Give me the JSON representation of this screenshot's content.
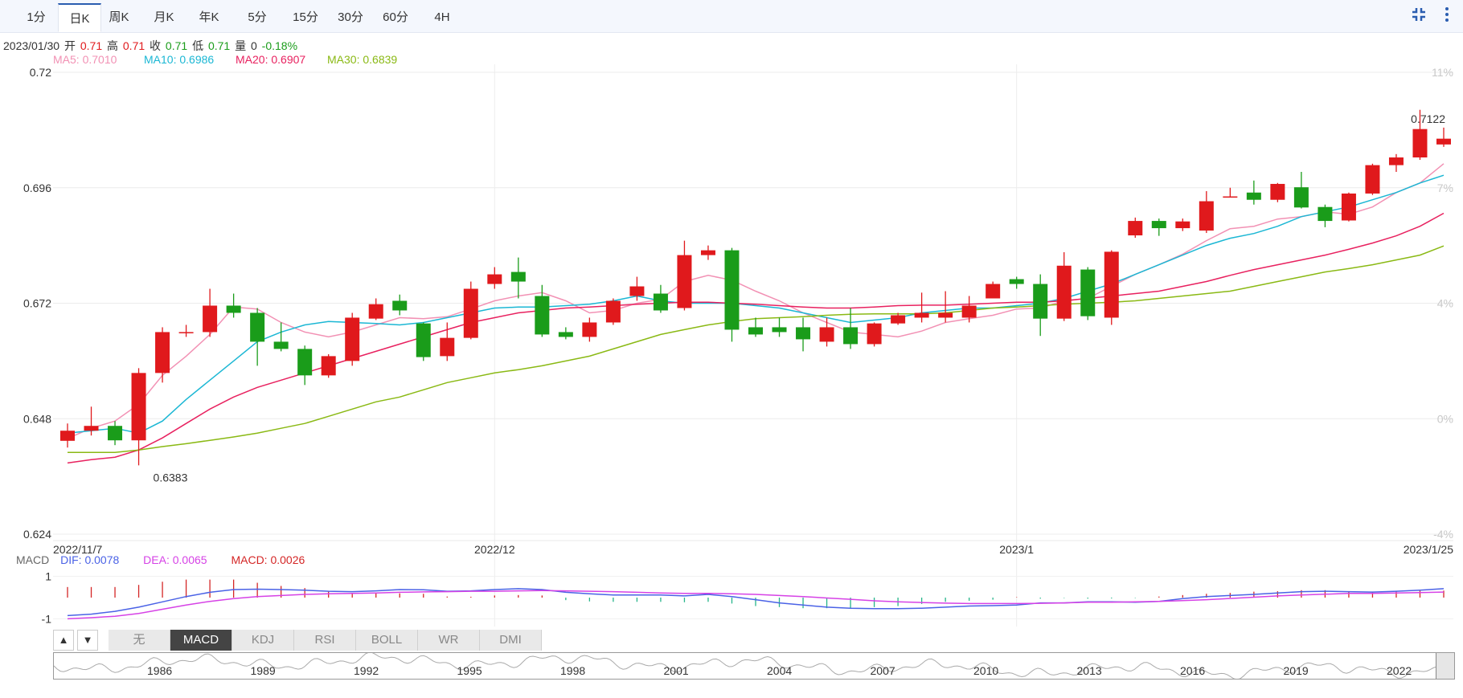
{
  "tabs": [
    {
      "label": "1分",
      "active": false
    },
    {
      "label": "日K",
      "active": true
    },
    {
      "label": "周K",
      "active": false
    },
    {
      "label": "月K",
      "active": false
    },
    {
      "label": "年K",
      "active": false
    },
    {
      "label": "5分",
      "active": false
    },
    {
      "label": "15分",
      "active": false
    },
    {
      "label": "30分",
      "active": false
    },
    {
      "label": "60分",
      "active": false
    },
    {
      "label": "4H",
      "active": false
    }
  ],
  "icons": {
    "collapse": "compress-icon",
    "more": "more-vertical-icon"
  },
  "info": {
    "date": "2023/01/30",
    "open_label": "开",
    "open": "0.71",
    "high_label": "高",
    "high": "0.71",
    "close_label": "收",
    "close": "0.71",
    "low_label": "低",
    "low": "0.71",
    "vol_label": "量",
    "vol": "0",
    "change": "-0.18%"
  },
  "ma": [
    {
      "label": "MA5: 0.7010",
      "color": "#f291b4"
    },
    {
      "label": "MA10: 0.6986",
      "color": "#1bb7d4"
    },
    {
      "label": "MA20: 0.6907",
      "color": "#e8215f"
    },
    {
      "label": "MA30: 0.6839",
      "color": "#8ab914"
    }
  ],
  "macd_info": {
    "label": "MACD",
    "dif": "DIF: 0.0078",
    "dea": "DEA: 0.0065",
    "macd": "MACD: 0.0026",
    "dif_color": "#4a62e6",
    "dea_color": "#d642e6",
    "macd_color": "#d42626"
  },
  "indicator_tabs": [
    {
      "label": "无",
      "active": false
    },
    {
      "label": "MACD",
      "active": true
    },
    {
      "label": "KDJ",
      "active": false
    },
    {
      "label": "RSI",
      "active": false
    },
    {
      "label": "BOLL",
      "active": false
    },
    {
      "label": "WR",
      "active": false
    },
    {
      "label": "DMI",
      "active": false
    }
  ],
  "arrows": {
    "up": "▲",
    "down": "▼"
  },
  "navigator_years": [
    "1986",
    "1989",
    "1992",
    "1995",
    "1998",
    "2001",
    "2004",
    "2007",
    "2010",
    "2013",
    "2016",
    "2019",
    "2022"
  ],
  "colors": {
    "up": "#e0191c",
    "down": "#1a9c1a"
  },
  "chart_data": {
    "type": "candlestick",
    "y_ticks": [
      "0.72",
      "0.696",
      "0.672",
      "0.648",
      "0.624"
    ],
    "ylim": [
      0.624,
      0.72
    ],
    "y_right_ticks": [
      "11%",
      "7%",
      "4%",
      "0%",
      "-4%"
    ],
    "x_ticks": [
      "2022/11/7",
      "2022/12",
      "2023/1",
      "2023/1/25"
    ],
    "x_tick_index": [
      0,
      18,
      40,
      58
    ],
    "max_label": "0.7122",
    "min_label": "0.6383",
    "max_index": 58,
    "min_index": 3,
    "candles": [
      [
        0.6434,
        0.6455,
        0.642,
        0.647
      ],
      [
        0.6455,
        0.6465,
        0.6445,
        0.6505
      ],
      [
        0.6465,
        0.6435,
        0.6425,
        0.6475
      ],
      [
        0.6435,
        0.6575,
        0.6383,
        0.6585
      ],
      [
        0.6575,
        0.666,
        0.6555,
        0.667
      ],
      [
        0.666,
        0.666,
        0.665,
        0.6675
      ],
      [
        0.666,
        0.6715,
        0.665,
        0.675
      ],
      [
        0.6715,
        0.67,
        0.669,
        0.674
      ],
      [
        0.67,
        0.664,
        0.659,
        0.671
      ],
      [
        0.664,
        0.6625,
        0.662,
        0.668
      ],
      [
        0.6625,
        0.657,
        0.655,
        0.6632
      ],
      [
        0.657,
        0.661,
        0.6565,
        0.6614
      ],
      [
        0.66,
        0.669,
        0.659,
        0.67
      ],
      [
        0.6688,
        0.6718,
        0.6685,
        0.673
      ],
      [
        0.6725,
        0.6705,
        0.6695,
        0.6738
      ],
      [
        0.6678,
        0.6608,
        0.66,
        0.668
      ],
      [
        0.661,
        0.6648,
        0.66,
        0.668
      ],
      [
        0.6648,
        0.675,
        0.6645,
        0.6765
      ],
      [
        0.676,
        0.678,
        0.675,
        0.6795
      ],
      [
        0.6785,
        0.6765,
        0.673,
        0.6815
      ],
      [
        0.6735,
        0.6655,
        0.665,
        0.6758
      ],
      [
        0.666,
        0.665,
        0.6645,
        0.667
      ],
      [
        0.665,
        0.668,
        0.664,
        0.669
      ],
      [
        0.668,
        0.6725,
        0.6675,
        0.673
      ],
      [
        0.6735,
        0.6755,
        0.6725,
        0.6775
      ],
      [
        0.674,
        0.6705,
        0.67,
        0.6758
      ],
      [
        0.671,
        0.682,
        0.6705,
        0.685
      ],
      [
        0.682,
        0.683,
        0.681,
        0.684
      ],
      [
        0.683,
        0.6665,
        0.664,
        0.6835
      ],
      [
        0.667,
        0.6655,
        0.665,
        0.669
      ],
      [
        0.667,
        0.666,
        0.665,
        0.669
      ],
      [
        0.667,
        0.6645,
        0.662,
        0.669
      ],
      [
        0.664,
        0.667,
        0.663,
        0.669
      ],
      [
        0.667,
        0.6635,
        0.6625,
        0.671
      ],
      [
        0.6635,
        0.6678,
        0.663,
        0.668
      ],
      [
        0.6678,
        0.6695,
        0.6675,
        0.67
      ],
      [
        0.669,
        0.67,
        0.668,
        0.6742
      ],
      [
        0.669,
        0.67,
        0.668,
        0.6745
      ],
      [
        0.669,
        0.6715,
        0.668,
        0.6735
      ],
      [
        0.673,
        0.676,
        0.673,
        0.6765
      ],
      [
        0.677,
        0.676,
        0.675,
        0.6775
      ],
      [
        0.676,
        0.6688,
        0.6652,
        0.678
      ],
      [
        0.6688,
        0.6798,
        0.6683,
        0.6826
      ],
      [
        0.679,
        0.6693,
        0.6685,
        0.6795
      ],
      [
        0.669,
        0.6827,
        0.6675,
        0.683
      ],
      [
        0.6861,
        0.6891,
        0.6856,
        0.6898
      ],
      [
        0.6891,
        0.6876,
        0.686,
        0.6896
      ],
      [
        0.6876,
        0.689,
        0.687,
        0.6896
      ],
      [
        0.6871,
        0.6932,
        0.6866,
        0.6953
      ],
      [
        0.694,
        0.6942,
        0.694,
        0.696
      ],
      [
        0.695,
        0.6935,
        0.6925,
        0.6975
      ],
      [
        0.6935,
        0.6968,
        0.693,
        0.697
      ],
      [
        0.6961,
        0.6919,
        0.6917,
        0.6993
      ],
      [
        0.692,
        0.6891,
        0.6878,
        0.6925
      ],
      [
        0.6892,
        0.6948,
        0.689,
        0.695
      ],
      [
        0.6948,
        0.7007,
        0.6945,
        0.701
      ],
      [
        0.7007,
        0.7023,
        0.6993,
        0.703
      ],
      [
        0.7023,
        0.7082,
        0.7018,
        0.7122
      ],
      [
        0.705,
        0.7062,
        0.7045,
        0.7085
      ]
    ],
    "ma_series": {
      "MA5": [
        0.6439,
        0.646,
        0.6475,
        0.651,
        0.657,
        0.661,
        0.6655,
        0.6712,
        0.6708,
        0.668,
        0.666,
        0.665,
        0.666,
        0.6675,
        0.669,
        0.6688,
        0.6692,
        0.6708,
        0.6725,
        0.6735,
        0.6742,
        0.6725,
        0.67,
        0.6705,
        0.672,
        0.6728,
        0.6765,
        0.6778,
        0.6768,
        0.6745,
        0.6725,
        0.67,
        0.668,
        0.666,
        0.6655,
        0.665,
        0.6662,
        0.668,
        0.6688,
        0.6695,
        0.6708,
        0.671,
        0.6725,
        0.673,
        0.6755,
        0.678,
        0.68,
        0.6822,
        0.685,
        0.6875,
        0.688,
        0.6895,
        0.69,
        0.691,
        0.6905,
        0.692,
        0.695,
        0.697,
        0.701
      ],
      "MA10": [
        0.645,
        0.6455,
        0.646,
        0.645,
        0.6475,
        0.652,
        0.656,
        0.66,
        0.664,
        0.666,
        0.6675,
        0.6682,
        0.668,
        0.6678,
        0.6675,
        0.668,
        0.669,
        0.67,
        0.671,
        0.6712,
        0.6712,
        0.6715,
        0.6718,
        0.6725,
        0.6735,
        0.6725,
        0.672,
        0.672,
        0.672,
        0.6715,
        0.671,
        0.67,
        0.669,
        0.668,
        0.6685,
        0.669,
        0.67,
        0.6705,
        0.671,
        0.671,
        0.6715,
        0.672,
        0.673,
        0.6745,
        0.676,
        0.678,
        0.68,
        0.682,
        0.684,
        0.6855,
        0.6865,
        0.688,
        0.69,
        0.691,
        0.692,
        0.6935,
        0.695,
        0.697,
        0.6986
      ],
      "MA20": [
        0.6388,
        0.6395,
        0.64,
        0.6415,
        0.644,
        0.647,
        0.65,
        0.6525,
        0.6545,
        0.656,
        0.6575,
        0.659,
        0.6605,
        0.662,
        0.6635,
        0.665,
        0.6665,
        0.668,
        0.669,
        0.67,
        0.6705,
        0.671,
        0.6712,
        0.6715,
        0.6718,
        0.672,
        0.6722,
        0.6722,
        0.672,
        0.6718,
        0.6715,
        0.6712,
        0.671,
        0.671,
        0.6712,
        0.6715,
        0.6716,
        0.6716,
        0.6718,
        0.672,
        0.6722,
        0.6722,
        0.6725,
        0.673,
        0.6735,
        0.674,
        0.6745,
        0.6755,
        0.6765,
        0.6778,
        0.679,
        0.68,
        0.681,
        0.682,
        0.6832,
        0.6845,
        0.686,
        0.688,
        0.6907
      ],
      "MA30": [
        0.641,
        0.641,
        0.641,
        0.6415,
        0.6422,
        0.6428,
        0.6435,
        0.6442,
        0.645,
        0.646,
        0.647,
        0.6485,
        0.65,
        0.6515,
        0.6525,
        0.654,
        0.6555,
        0.6565,
        0.6575,
        0.6582,
        0.659,
        0.66,
        0.661,
        0.6625,
        0.664,
        0.6655,
        0.6665,
        0.6675,
        0.6682,
        0.6688,
        0.669,
        0.6692,
        0.6695,
        0.6697,
        0.6698,
        0.6698,
        0.6698,
        0.67,
        0.6705,
        0.671,
        0.6712,
        0.6715,
        0.6718,
        0.672,
        0.6722,
        0.6725,
        0.673,
        0.6735,
        0.674,
        0.6745,
        0.6755,
        0.6765,
        0.6775,
        0.6785,
        0.6792,
        0.68,
        0.681,
        0.682,
        0.6839
      ]
    },
    "macd_y_ticks": [
      "1",
      "-1"
    ],
    "macd_ylim": [
      -1.1,
      1.1
    ],
    "dif": [
      -0.85,
      -0.78,
      -0.65,
      -0.45,
      -0.2,
      0.05,
      0.25,
      0.38,
      0.4,
      0.38,
      0.35,
      0.3,
      0.28,
      0.32,
      0.38,
      0.37,
      0.3,
      0.32,
      0.38,
      0.42,
      0.38,
      0.25,
      0.18,
      0.12,
      0.12,
      0.12,
      0.08,
      0.15,
      0.05,
      -0.1,
      -0.25,
      -0.35,
      -0.45,
      -0.5,
      -0.52,
      -0.52,
      -0.5,
      -0.45,
      -0.4,
      -0.38,
      -0.35,
      -0.25,
      -0.25,
      -0.2,
      -0.2,
      -0.22,
      -0.18,
      -0.05,
      0.05,
      0.1,
      0.15,
      0.22,
      0.28,
      0.3,
      0.28,
      0.26,
      0.3,
      0.35,
      0.42
    ],
    "dea": [
      -1.0,
      -0.95,
      -0.88,
      -0.75,
      -0.55,
      -0.35,
      -0.18,
      -0.05,
      0.05,
      0.1,
      0.15,
      0.18,
      0.2,
      0.22,
      0.25,
      0.27,
      0.28,
      0.3,
      0.3,
      0.32,
      0.33,
      0.32,
      0.3,
      0.28,
      0.25,
      0.22,
      0.2,
      0.2,
      0.18,
      0.15,
      0.1,
      0.05,
      -0.02,
      -0.08,
      -0.15,
      -0.2,
      -0.23,
      -0.26,
      -0.28,
      -0.28,
      -0.28,
      -0.27,
      -0.25,
      -0.22,
      -0.22,
      -0.2,
      -0.18,
      -0.14,
      -0.1,
      -0.04,
      0.02,
      0.08,
      0.12,
      0.16,
      0.2,
      0.2,
      0.22,
      0.24,
      0.26
    ],
    "macd_bars": [
      0.5,
      0.5,
      0.5,
      0.6,
      0.75,
      0.85,
      0.85,
      0.85,
      0.7,
      0.55,
      0.45,
      0.3,
      0.2,
      0.2,
      0.2,
      0.18,
      0.05,
      0.04,
      0.1,
      0.12,
      0.1,
      -0.12,
      -0.18,
      -0.2,
      -0.2,
      -0.2,
      -0.22,
      -0.2,
      -0.28,
      -0.4,
      -0.45,
      -0.5,
      -0.5,
      -0.5,
      -0.45,
      -0.4,
      -0.3,
      -0.2,
      -0.15,
      -0.1,
      0.02,
      -0.05,
      -0.02,
      -0.05,
      -0.04,
      -0.02,
      0.05,
      0.12,
      0.18,
      0.22,
      0.28,
      0.3,
      0.35,
      0.35,
      0.3,
      0.25,
      0.3,
      0.32,
      0.33
    ]
  }
}
